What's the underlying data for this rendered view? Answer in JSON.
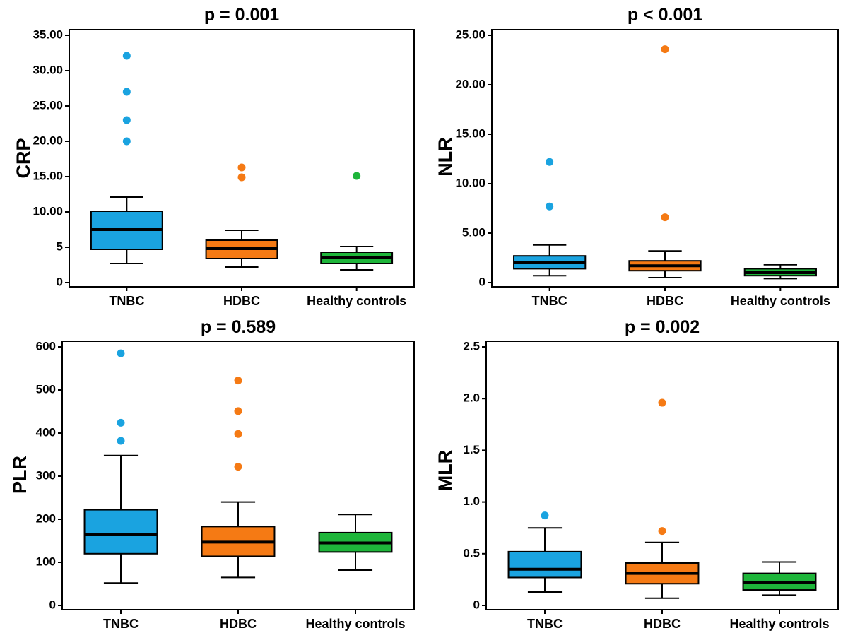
{
  "colors": {
    "TNBC": "#1aa3e0",
    "HDBC": "#f57a14",
    "Healthy controls": "#1eb53a"
  },
  "chart_data": [
    {
      "type": "box",
      "title": "p = 0.001",
      "ylabel": "CRP",
      "categories": [
        "TNBC",
        "HDBC",
        "Healthy controls"
      ],
      "ylim": [
        0,
        35
      ],
      "yticks": [
        0,
        5,
        10,
        15,
        20,
        25,
        30,
        35
      ],
      "yticklabels": [
        "0",
        "5",
        "10.00",
        "15.00",
        "20.00",
        "25.00",
        "30.00",
        "35.00"
      ],
      "grid": false,
      "boxes": [
        {
          "name": "TNBC",
          "whisker_low": 2.7,
          "q1": 4.7,
          "median": 7.5,
          "q3": 10.1,
          "whisker_high": 12.1,
          "outliers": [
            20.0,
            23.0,
            27.0,
            32.1
          ]
        },
        {
          "name": "HDBC",
          "whisker_low": 2.2,
          "q1": 3.4,
          "median": 4.8,
          "q3": 6.0,
          "whisker_high": 7.4,
          "outliers": [
            14.9,
            16.3
          ]
        },
        {
          "name": "Healthy controls",
          "whisker_low": 1.8,
          "q1": 2.7,
          "median": 3.6,
          "q3": 4.3,
          "whisker_high": 5.1,
          "outliers": [
            15.1
          ]
        }
      ]
    },
    {
      "type": "box",
      "title": "p < 0.001",
      "ylabel": "NLR",
      "categories": [
        "TNBC",
        "HDBC",
        "Healthy controls"
      ],
      "ylim": [
        0,
        25
      ],
      "yticks": [
        0,
        5,
        10,
        15,
        20,
        25
      ],
      "yticklabels": [
        "0",
        "5.00",
        "10.00",
        "15.00",
        "20.00",
        "25.00"
      ],
      "grid": false,
      "boxes": [
        {
          "name": "TNBC",
          "whisker_low": 0.7,
          "q1": 1.4,
          "median": 2.0,
          "q3": 2.7,
          "whisker_high": 3.8,
          "outliers": [
            7.7,
            12.2
          ]
        },
        {
          "name": "HDBC",
          "whisker_low": 0.5,
          "q1": 1.2,
          "median": 1.7,
          "q3": 2.2,
          "whisker_high": 3.2,
          "outliers": [
            6.6,
            23.6
          ]
        },
        {
          "name": "Healthy controls",
          "whisker_low": 0.4,
          "q1": 0.7,
          "median": 1.0,
          "q3": 1.4,
          "whisker_high": 1.8,
          "outliers": []
        }
      ]
    },
    {
      "type": "box",
      "title": "p = 0.589",
      "ylabel": "PLR",
      "categories": [
        "TNBC",
        "HDBC",
        "Healthy controls"
      ],
      "ylim": [
        0,
        600
      ],
      "yticks": [
        0,
        100,
        200,
        300,
        400,
        500,
        600
      ],
      "yticklabels": [
        "0",
        "100",
        "200",
        "300",
        "400",
        "500",
        "600"
      ],
      "grid": false,
      "boxes": [
        {
          "name": "TNBC",
          "whisker_low": 52,
          "q1": 120,
          "median": 165,
          "q3": 222,
          "whisker_high": 348,
          "outliers": [
            382,
            424,
            585
          ]
        },
        {
          "name": "HDBC",
          "whisker_low": 65,
          "q1": 114,
          "median": 147,
          "q3": 183,
          "whisker_high": 240,
          "outliers": [
            322,
            398,
            451,
            522
          ]
        },
        {
          "name": "Healthy controls",
          "whisker_low": 82,
          "q1": 124,
          "median": 145,
          "q3": 169,
          "whisker_high": 211,
          "outliers": []
        }
      ]
    },
    {
      "type": "box",
      "title": "p = 0.002",
      "ylabel": "MLR",
      "categories": [
        "TNBC",
        "HDBC",
        "Healthy controls"
      ],
      "ylim": [
        0,
        2.5
      ],
      "yticks": [
        0,
        0.5,
        1.0,
        1.5,
        2.0,
        2.5
      ],
      "yticklabels": [
        "0",
        "0.5",
        "1.0",
        "1.5",
        "2.0",
        "2.5"
      ],
      "grid": false,
      "boxes": [
        {
          "name": "TNBC",
          "whisker_low": 0.13,
          "q1": 0.27,
          "median": 0.35,
          "q3": 0.52,
          "whisker_high": 0.75,
          "outliers": [
            0.87
          ]
        },
        {
          "name": "HDBC",
          "whisker_low": 0.07,
          "q1": 0.21,
          "median": 0.31,
          "q3": 0.41,
          "whisker_high": 0.61,
          "outliers": [
            0.72,
            1.96
          ]
        },
        {
          "name": "Healthy controls",
          "whisker_low": 0.1,
          "q1": 0.15,
          "median": 0.22,
          "q3": 0.31,
          "whisker_high": 0.42,
          "outliers": []
        }
      ]
    }
  ]
}
